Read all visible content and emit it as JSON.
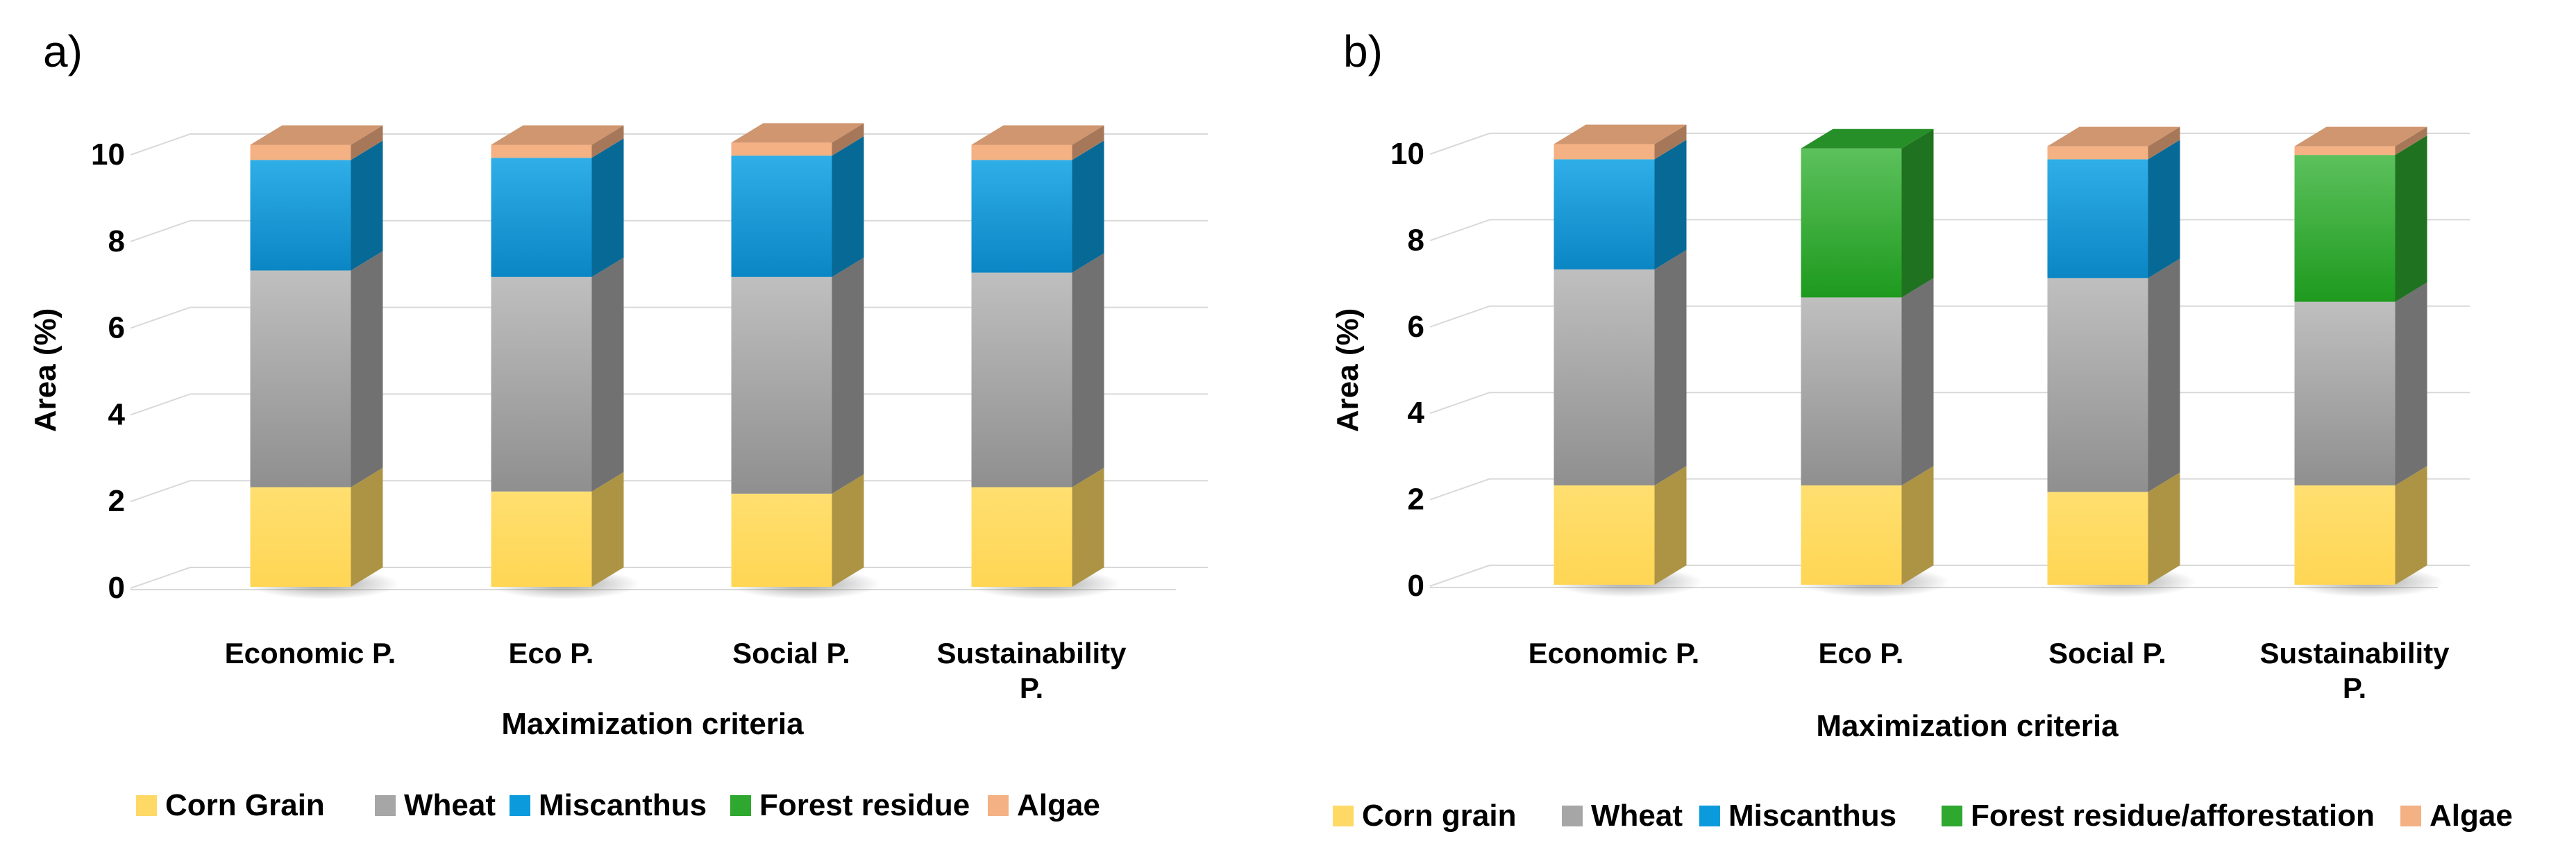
{
  "chart_data": [
    {
      "type": "bar",
      "stacked": true,
      "panel_label": "a)",
      "title": "",
      "xlabel": "Maximization criteria",
      "ylabel": "Area (%)",
      "ylim": [
        0,
        10
      ],
      "yticks": [
        "0",
        "2",
        "4",
        "6",
        "8",
        "10"
      ],
      "grid": true,
      "categories": [
        [
          "Economic P."
        ],
        [
          "Eco P."
        ],
        [
          "Social P."
        ],
        [
          "Sustainability",
          "P."
        ]
      ],
      "series": [
        {
          "name": "Corn Grain",
          "color": "#FFD966",
          "values": [
            2.3,
            2.2,
            2.15,
            2.3
          ]
        },
        {
          "name": "Wheat",
          "color": "#A6A6A6",
          "values": [
            5.0,
            4.95,
            5.0,
            4.95
          ]
        },
        {
          "name": "Miscanthus",
          "color": "#0B9BDC",
          "values": [
            2.55,
            2.75,
            2.8,
            2.6
          ]
        },
        {
          "name": "Forest residue",
          "color": "#2EA82E",
          "values": [
            0,
            0,
            0,
            0
          ]
        },
        {
          "name": "Algae",
          "color": "#F4B183",
          "values": [
            0.35,
            0.3,
            0.3,
            0.35
          ]
        }
      ],
      "legend": [
        "Corn Grain",
        "Wheat",
        "Miscanthus",
        "Forest residue",
        "Algae"
      ]
    },
    {
      "type": "bar",
      "stacked": true,
      "panel_label": "b)",
      "title": "",
      "xlabel": "Maximization criteria",
      "ylabel": "Area (%)",
      "ylim": [
        0,
        10
      ],
      "yticks": [
        "0",
        "2",
        "4",
        "6",
        "8",
        "10"
      ],
      "grid": true,
      "categories": [
        [
          "Economic P."
        ],
        [
          "Eco P."
        ],
        [
          "Social P."
        ],
        [
          "Sustainability",
          "P."
        ]
      ],
      "series": [
        {
          "name": "Corn grain",
          "color": "#FFD966",
          "values": [
            2.3,
            2.3,
            2.15,
            2.3
          ]
        },
        {
          "name": "Wheat",
          "color": "#A6A6A6",
          "values": [
            5.0,
            4.35,
            4.95,
            4.25
          ]
        },
        {
          "name": "Miscanthus",
          "color": "#0B9BDC",
          "values": [
            2.55,
            0,
            2.75,
            0
          ]
        },
        {
          "name": "Forest residue/afforestation",
          "color": "#2EA82E",
          "values": [
            0,
            3.45,
            0,
            3.4
          ]
        },
        {
          "name": "Algae",
          "color": "#F4B183",
          "values": [
            0.35,
            0,
            0.3,
            0.2
          ]
        }
      ],
      "legend": [
        "Corn grain",
        "Wheat",
        "Miscanthus",
        "Forest residue/afforestation",
        "Algae"
      ]
    }
  ]
}
